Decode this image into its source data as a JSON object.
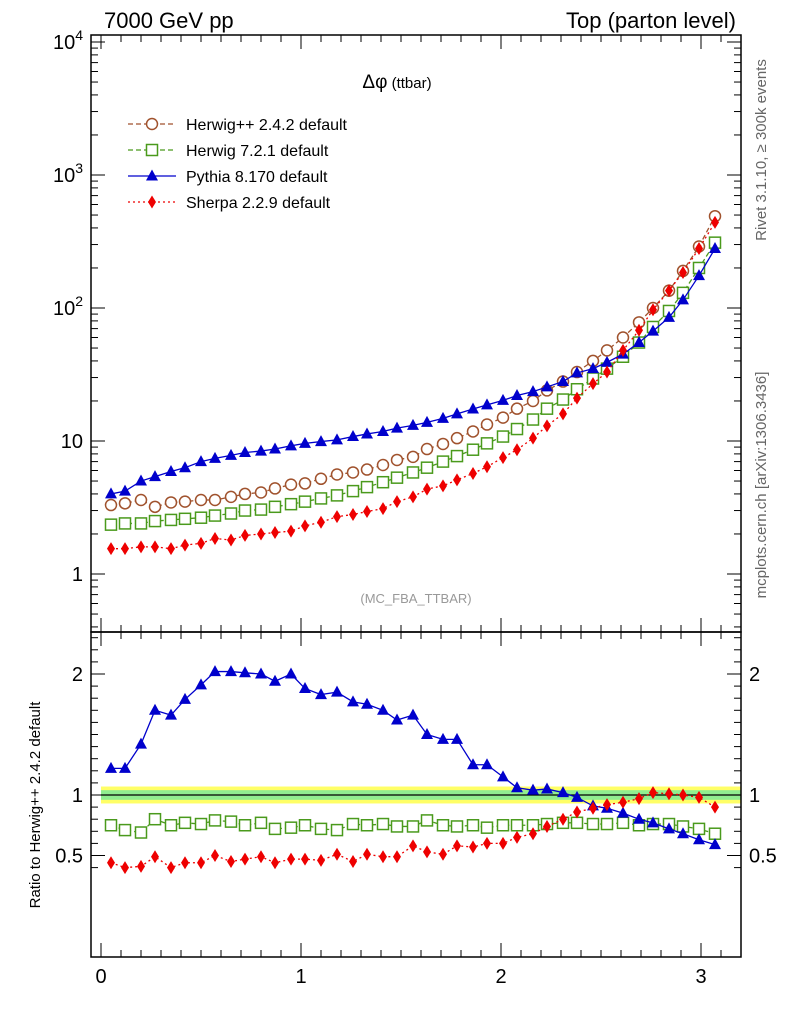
{
  "header": {
    "left": "7000 GeV pp",
    "right": "Top (parton level)"
  },
  "side": {
    "rivet": "Rivet 3.1.10, ≥ 300k events",
    "mcplots": "mcplots.cern.ch [arXiv:1306.3436]"
  },
  "chart_data": [
    {
      "type": "line",
      "panel": "main",
      "title": "Δφ (ttbar)",
      "title_symbol": "Δφ",
      "title_rest": " (ttbar)",
      "watermark": "(MC_FBA_TTBAR)",
      "yscale": "log",
      "ylim": [
        0.3,
        10000
      ],
      "xlim": [
        -0.05,
        3.2
      ],
      "y_tick_labels": [
        {
          "v": 1,
          "label": "1"
        },
        {
          "v": 10,
          "label": "10"
        },
        {
          "v": 100,
          "label": "10",
          "sup": "2"
        },
        {
          "v": 1000,
          "label": "10",
          "sup": "3"
        },
        {
          "v": 10000,
          "label": "10",
          "sup": "4"
        }
      ],
      "legend_position": "top-left",
      "x": [
        0.05,
        0.12,
        0.2,
        0.27,
        0.35,
        0.42,
        0.5,
        0.57,
        0.65,
        0.72,
        0.8,
        0.87,
        0.95,
        1.02,
        1.1,
        1.18,
        1.26,
        1.33,
        1.41,
        1.48,
        1.56,
        1.63,
        1.71,
        1.78,
        1.86,
        1.93,
        2.01,
        2.08,
        2.16,
        2.23,
        2.31,
        2.38,
        2.46,
        2.53,
        2.61,
        2.69,
        2.76,
        2.84,
        2.91,
        2.99,
        3.07
      ],
      "series": [
        {
          "name": "Herwig++ 2.4.2 default",
          "color": "#a0522d",
          "marker": "open-circle",
          "line": "dashed",
          "values": [
            3.3,
            3.4,
            3.6,
            3.2,
            3.45,
            3.5,
            3.6,
            3.6,
            3.8,
            4.0,
            4.1,
            4.4,
            4.7,
            4.8,
            5.2,
            5.6,
            5.8,
            6.1,
            6.6,
            7.2,
            7.6,
            8.7,
            9.5,
            10.5,
            11.8,
            13.3,
            15.0,
            17.5,
            20.0,
            24.0,
            28.0,
            33.0,
            40.0,
            48.0,
            60.0,
            78.0,
            100.0,
            135.0,
            190.0,
            290.0,
            490.0
          ]
        },
        {
          "name": "Herwig 7.2.1 default",
          "color": "#4a9a1c",
          "marker": "open-square",
          "line": "dashed",
          "values": [
            2.35,
            2.4,
            2.4,
            2.5,
            2.55,
            2.6,
            2.65,
            2.75,
            2.85,
            3.0,
            3.05,
            3.2,
            3.35,
            3.5,
            3.7,
            3.9,
            4.2,
            4.5,
            4.9,
            5.3,
            5.8,
            6.3,
            7.0,
            7.7,
            8.6,
            9.6,
            10.8,
            12.3,
            14.5,
            17.5,
            20.5,
            24.5,
            29.5,
            35.0,
            43.0,
            55.0,
            72.0,
            95.0,
            130.0,
            200.0,
            310.0
          ]
        },
        {
          "name": "Pythia 8.170 default",
          "color": "#0000cc",
          "marker": "filled-triangle",
          "line": "solid",
          "values": [
            4.0,
            4.2,
            5.0,
            5.4,
            5.9,
            6.3,
            7.0,
            7.4,
            7.8,
            8.2,
            8.4,
            8.7,
            9.2,
            9.6,
            9.9,
            10.2,
            10.8,
            11.3,
            11.8,
            12.5,
            13.1,
            13.8,
            14.8,
            16.0,
            17.4,
            18.7,
            20.2,
            22.0,
            23.5,
            25.5,
            28.0,
            32.5,
            35.0,
            39.0,
            45.0,
            55.0,
            67.0,
            85.0,
            115.0,
            175.0,
            280.0
          ]
        },
        {
          "name": "Sherpa 2.2.9 default",
          "color": "#ee0000",
          "marker": "filled-diamond",
          "line": "dotted",
          "values": [
            1.55,
            1.55,
            1.6,
            1.6,
            1.55,
            1.65,
            1.7,
            1.85,
            1.8,
            1.95,
            2.0,
            2.05,
            2.1,
            2.3,
            2.45,
            2.7,
            2.8,
            2.95,
            3.1,
            3.5,
            3.8,
            4.35,
            4.6,
            5.1,
            5.7,
            6.4,
            7.5,
            8.6,
            10.5,
            13.0,
            16.0,
            21.0,
            27.0,
            33.0,
            48.0,
            68.0,
            97.0,
            135.0,
            185.0,
            280.0,
            440.0
          ]
        }
      ]
    },
    {
      "type": "line",
      "panel": "ratio",
      "ylabel": "Ratio to Herwig++ 2.4.2 default",
      "ylim": [
        0.35,
        2.3
      ],
      "xlim": [
        -0.05,
        3.2
      ],
      "x_ticks": [
        0,
        1,
        2,
        3
      ],
      "x_tick_labels": [
        "0",
        "1",
        "2",
        "3"
      ],
      "y_ticks": [
        0.5,
        1,
        2
      ],
      "y_tick_labels": [
        "0.5",
        "1",
        "2"
      ],
      "reference_band": {
        "center": 1.0,
        "inner_halfwidth": 0.04,
        "outer_halfwidth": 0.07,
        "inner_color": "#90ee90",
        "outer_color": "#ffff66"
      },
      "x": [
        0.05,
        0.12,
        0.2,
        0.27,
        0.35,
        0.42,
        0.5,
        0.57,
        0.65,
        0.72,
        0.8,
        0.87,
        0.95,
        1.02,
        1.1,
        1.18,
        1.26,
        1.33,
        1.41,
        1.48,
        1.56,
        1.63,
        1.71,
        1.78,
        1.86,
        1.93,
        2.01,
        2.08,
        2.16,
        2.23,
        2.31,
        2.38,
        2.46,
        2.53,
        2.61,
        2.69,
        2.76,
        2.84,
        2.91,
        2.99,
        3.07
      ],
      "series": [
        {
          "name": "Herwig 7.2.1 default",
          "color": "#4a9a1c",
          "marker": "open-square",
          "line": "dashed",
          "values": [
            0.75,
            0.71,
            0.69,
            0.8,
            0.75,
            0.77,
            0.76,
            0.79,
            0.78,
            0.75,
            0.77,
            0.72,
            0.73,
            0.75,
            0.72,
            0.71,
            0.76,
            0.75,
            0.76,
            0.74,
            0.74,
            0.79,
            0.75,
            0.74,
            0.75,
            0.73,
            0.75,
            0.75,
            0.75,
            0.76,
            0.77,
            0.77,
            0.76,
            0.76,
            0.77,
            0.75,
            0.76,
            0.76,
            0.74,
            0.72,
            0.68
          ]
        },
        {
          "name": "Pythia 8.170 default",
          "color": "#0000cc",
          "marker": "filled-triangle",
          "line": "solid",
          "values": [
            1.22,
            1.22,
            1.42,
            1.7,
            1.66,
            1.79,
            1.91,
            2.02,
            2.02,
            2.01,
            2.0,
            1.94,
            2.0,
            1.88,
            1.83,
            1.85,
            1.77,
            1.75,
            1.7,
            1.62,
            1.66,
            1.5,
            1.46,
            1.46,
            1.25,
            1.25,
            1.15,
            1.06,
            1.04,
            1.05,
            1.02,
            0.98,
            0.91,
            0.89,
            0.85,
            0.8,
            0.77,
            0.72,
            0.68,
            0.63,
            0.59
          ]
        },
        {
          "name": "Sherpa 2.2.9 default",
          "color": "#ee0000",
          "marker": "filled-diamond",
          "line": "dotted",
          "values": [
            0.44,
            0.4,
            0.41,
            0.49,
            0.4,
            0.44,
            0.44,
            0.5,
            0.45,
            0.47,
            0.49,
            0.44,
            0.47,
            0.47,
            0.46,
            0.51,
            0.45,
            0.51,
            0.49,
            0.49,
            0.58,
            0.53,
            0.51,
            0.58,
            0.57,
            0.6,
            0.6,
            0.65,
            0.68,
            0.74,
            0.8,
            0.86,
            0.89,
            0.92,
            0.94,
            0.97,
            1.02,
            1.01,
            1.0,
            0.98,
            0.9
          ]
        }
      ]
    }
  ]
}
